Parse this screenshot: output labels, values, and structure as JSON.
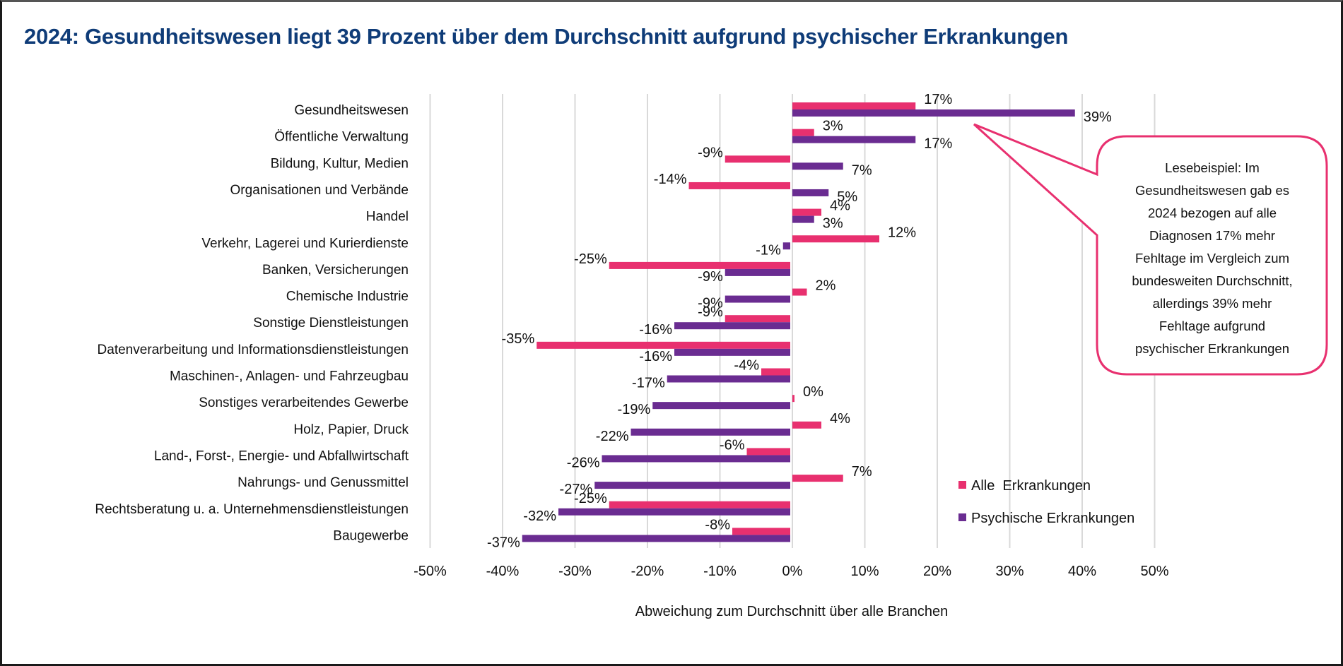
{
  "title": "2024: Gesundheitswesen liegt 39 Prozent über dem Durchschnitt aufgrund psychischer Erkrankungen",
  "colors": {
    "title": "#0f3c78",
    "alle": "#e8306f",
    "psychische": "#6a2c91",
    "callout_border": "#e8306f",
    "gridline": "#d9d9d9"
  },
  "callout": {
    "lines": [
      "Lesebeispiel: Im",
      "Gesundheitswesen gab es",
      "2024 bezogen auf alle",
      "Diagnosen 17% mehr",
      "Fehltage im Vergleich zum",
      "bundesweiten Durchschnitt,",
      "allerdings 39% mehr",
      "Fehltage aufgrund",
      "psychischer Erkrankungen"
    ],
    "points_to": "Gesundheitswesen"
  },
  "chart_data": {
    "type": "bar",
    "orientation": "horizontal",
    "title": "2024: Gesundheitswesen liegt 39 Prozent über dem Durchschnitt aufgrund psychischer Erkrankungen",
    "xlabel": "Abweichung zum Durchschnitt über alle Branchen",
    "ylabel": "",
    "xlim": [
      -50,
      50
    ],
    "x_ticks": [
      -50,
      -40,
      -30,
      -20,
      -10,
      0,
      10,
      20,
      30,
      40,
      50
    ],
    "x_tick_labels": [
      "-50%",
      "-40%",
      "-30%",
      "-20%",
      "-10%",
      "0%",
      "10%",
      "20%",
      "30%",
      "40%",
      "50%"
    ],
    "grid": "vertical",
    "legend_position": "bottom-right",
    "unit": "%",
    "categories": [
      "Gesundheitswesen",
      "Öffentliche Verwaltung",
      "Bildung, Kultur, Medien",
      "Organisationen und Verbände",
      "Handel",
      "Verkehr, Lagerei und Kurierdienste",
      "Banken, Versicherungen",
      "Chemische Industrie",
      "Sonstige Dienstleistungen",
      "Datenverarbeitung und Informationsdienstleistungen",
      "Maschinen-, Anlagen- und Fahrzeugbau",
      "Sonstiges verarbeitendes Gewerbe",
      "Holz, Papier, Druck",
      "Land-, Forst-,  Energie- und Abfallwirtschaft",
      "Nahrungs- und Genussmittel",
      "Rechtsberatung u. a. Unternehmensdienstleistungen",
      "Baugewerbe"
    ],
    "series": [
      {
        "name": "Alle  Erkrankungen",
        "key": "alle",
        "values": [
          17,
          3,
          -9,
          -14,
          4,
          12,
          -25,
          2,
          -9,
          -35,
          -4,
          0,
          4,
          -6,
          7,
          -25,
          -8
        ]
      },
      {
        "name": "Psychische Erkrankungen",
        "key": "psychische",
        "values": [
          39,
          17,
          7,
          5,
          3,
          -1,
          -9,
          -9,
          -16,
          -16,
          -17,
          -19,
          -22,
          -26,
          -27,
          -32,
          -37
        ]
      }
    ]
  }
}
